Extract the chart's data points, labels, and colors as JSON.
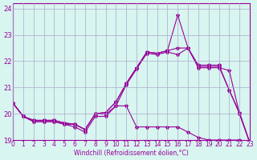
{
  "xlabel": "Windchill (Refroidissement éolien,°C)",
  "background_color": "#d8f5f0",
  "grid_color": "#aaaacc",
  "line_color": "#990099",
  "xlim": [
    0,
    23
  ],
  "ylim": [
    19,
    24.2
  ],
  "yticks": [
    19,
    20,
    21,
    22,
    23,
    24
  ],
  "xticks": [
    0,
    1,
    2,
    3,
    4,
    5,
    6,
    7,
    8,
    9,
    10,
    11,
    12,
    13,
    14,
    15,
    16,
    17,
    18,
    19,
    20,
    21,
    22,
    23
  ],
  "series1_x": [
    0,
    1,
    2,
    3,
    4,
    5,
    6,
    7,
    8,
    9,
    10,
    11,
    12,
    13,
    14,
    15,
    16,
    17,
    18,
    19,
    20,
    21,
    22,
    23
  ],
  "series1_y": [
    20.4,
    19.9,
    19.7,
    19.7,
    19.7,
    19.6,
    19.5,
    19.3,
    19.9,
    19.9,
    20.3,
    20.3,
    19.5,
    19.5,
    19.5,
    19.5,
    19.5,
    19.3,
    19.1,
    19.0,
    19.0,
    19.0,
    19.0,
    18.9
  ],
  "series2_x": [
    0,
    1,
    2,
    3,
    4,
    5,
    6,
    7,
    8,
    9,
    10,
    11,
    12,
    13,
    14,
    15,
    16,
    17,
    18,
    19,
    20,
    21,
    22,
    23
  ],
  "series2_y": [
    20.4,
    19.9,
    19.7,
    19.7,
    19.7,
    19.6,
    19.6,
    19.4,
    20.0,
    19.98,
    20.3,
    21.1,
    21.7,
    22.3,
    22.25,
    22.35,
    22.25,
    22.5,
    21.8,
    21.8,
    21.8,
    20.9,
    20.0,
    18.9
  ],
  "series3_x": [
    0,
    1,
    2,
    3,
    4,
    5,
    6,
    7,
    8,
    9,
    10,
    11,
    12,
    13,
    14,
    15,
    16,
    17,
    18,
    19,
    20,
    21,
    22,
    23
  ],
  "series3_y": [
    20.4,
    19.9,
    19.75,
    19.75,
    19.75,
    19.65,
    19.6,
    19.4,
    20.0,
    20.05,
    20.45,
    21.15,
    21.75,
    22.35,
    22.3,
    22.4,
    23.75,
    22.5,
    21.85,
    21.85,
    21.85,
    20.9,
    20.05,
    18.9
  ],
  "series4_x": [
    0,
    1,
    2,
    3,
    4,
    5,
    6,
    7,
    8,
    9,
    10,
    11,
    12,
    13,
    14,
    15,
    16,
    17,
    18,
    19,
    20,
    21,
    22,
    23
  ],
  "series4_y": [
    20.4,
    19.9,
    19.75,
    19.75,
    19.75,
    19.65,
    19.6,
    19.4,
    20.0,
    20.05,
    20.45,
    21.15,
    21.75,
    22.35,
    22.3,
    22.4,
    22.5,
    22.5,
    21.75,
    21.75,
    21.75,
    21.65,
    20.0,
    18.9
  ]
}
